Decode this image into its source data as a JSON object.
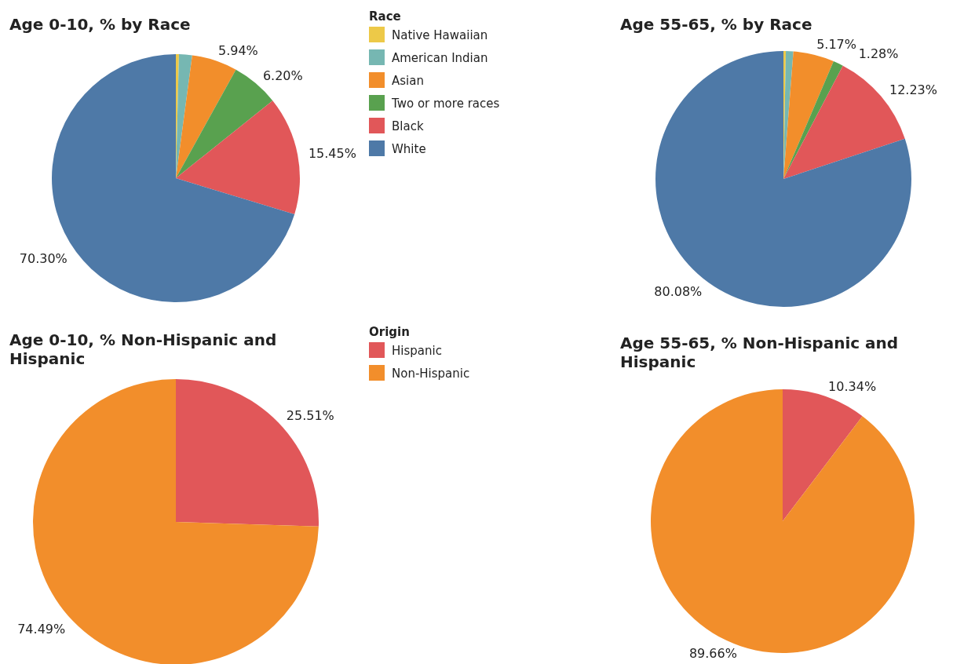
{
  "chart_data": [
    {
      "type": "pie",
      "title": "Age 0-10, % by Race",
      "legend_title": "Race",
      "legend": "right",
      "categories": [
        "Native Hawaiian",
        "American Indian",
        "Asian",
        "Two or more races",
        "Black",
        "White"
      ],
      "values": [
        0.4,
        1.71,
        5.94,
        6.2,
        15.45,
        70.3
      ],
      "value_labels": [
        null,
        null,
        "5.94%",
        "6.20%",
        "15.45%",
        "70.30%"
      ],
      "colors": [
        "#edc948",
        "#76b7b2",
        "#f28e2b",
        "#59a14f",
        "#e15759",
        "#4e79a7"
      ]
    },
    {
      "type": "pie",
      "title": "Age 55-65, % by Race",
      "categories": [
        null,
        null,
        null,
        null,
        null,
        null
      ],
      "values": [
        0.3,
        0.94,
        5.17,
        1.28,
        12.23,
        80.08
      ],
      "value_labels": [
        null,
        null,
        "5.17%",
        "1.28%",
        "12.23%",
        "80.08%"
      ],
      "colors": [
        "#edc948",
        "#76b7b2",
        "#f28e2b",
        "#59a14f",
        "#e15759",
        "#4e79a7"
      ]
    },
    {
      "type": "pie",
      "title": "Age 0-10, % Non-Hispanic and Hispanic",
      "legend_title": "Origin",
      "legend": "right",
      "categories": [
        "Hispanic",
        "Non-Hispanic"
      ],
      "values": [
        25.51,
        74.49
      ],
      "value_labels": [
        "25.51%",
        "74.49%"
      ],
      "colors": [
        "#e15759",
        "#f28e2b"
      ]
    },
    {
      "type": "pie",
      "title": "Age 55-65, % Non-Hispanic and Hispanic",
      "categories": [
        null,
        null
      ],
      "values": [
        10.34,
        89.66
      ],
      "value_labels": [
        "10.34%",
        "89.66%"
      ],
      "colors": [
        "#e15759",
        "#f28e2b"
      ]
    }
  ]
}
